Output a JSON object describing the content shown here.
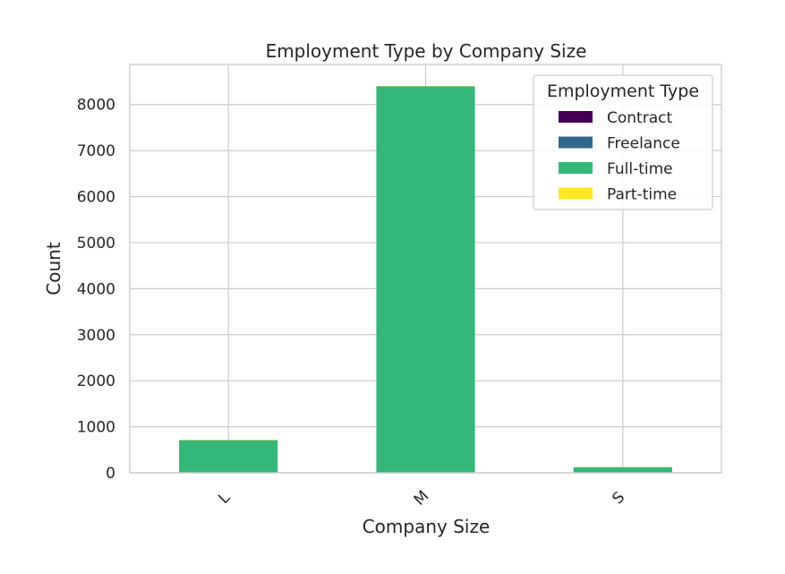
{
  "chart_data": {
    "type": "bar",
    "stacked": true,
    "title": "Employment Type by Company Size",
    "xlabel": "Company Size",
    "ylabel": "Count",
    "categories": [
      "L",
      "M",
      "S"
    ],
    "ylim": [
      0,
      8870
    ],
    "yticks": [
      0,
      1000,
      2000,
      3000,
      4000,
      5000,
      6000,
      7000,
      8000
    ],
    "grid": true,
    "legend_title": "Employment Type",
    "legend_position": "top-right",
    "series": [
      {
        "name": "Contract",
        "color": "#440154",
        "values": [
          5,
          3,
          2
        ]
      },
      {
        "name": "Freelance",
        "color": "#31688e",
        "values": [
          4,
          3,
          1
        ]
      },
      {
        "name": "Full-time",
        "color": "#35b779",
        "values": [
          700,
          8390,
          120
        ]
      },
      {
        "name": "Part-time",
        "color": "#fde725",
        "values": [
          6,
          5,
          4
        ]
      }
    ]
  }
}
